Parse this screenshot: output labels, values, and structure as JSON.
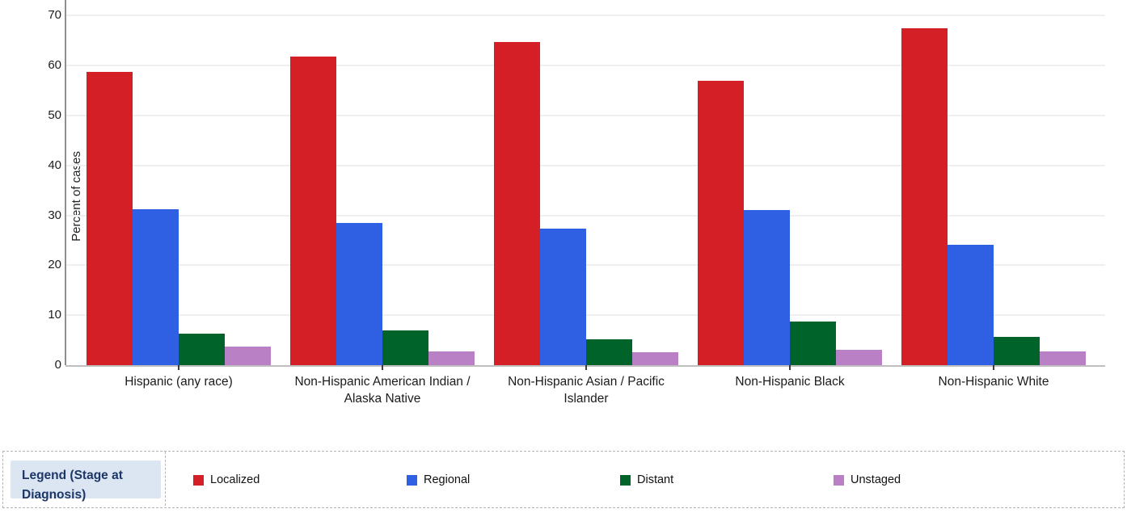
{
  "colors": {
    "localized": "#d41f26",
    "regional": "#2f5fe3",
    "distant": "#006329",
    "unstaged": "#ba80c5",
    "grid": "#efefef",
    "y_axis": "#8f8f8f",
    "x_axis": "#bfbfbf",
    "legend_title_bg": "#dbe6f2",
    "legend_title_text": "#1c3667"
  },
  "chart_data": {
    "type": "bar",
    "title": "",
    "xlabel": "",
    "ylabel": "Percent of cases",
    "grid": true,
    "legend_position": "bottom",
    "y_ticks": [
      0,
      10,
      20,
      30,
      40,
      50,
      60,
      70
    ],
    "ylim_visible": [
      0,
      73.2
    ],
    "categories": [
      "Hispanic (any race)",
      "Non-Hispanic American Indian / Alaska Native",
      "Non-Hispanic Asian / Pacific Islander",
      "Non-Hispanic Black",
      "Non-Hispanic White"
    ],
    "series": [
      {
        "name": "Localized",
        "color": "#d41f26",
        "values": [
          58.7,
          61.8,
          64.8,
          56.9,
          67.4
        ]
      },
      {
        "name": "Regional",
        "color": "#2f5fe3",
        "values": [
          31.3,
          28.5,
          27.4,
          31.1,
          24.1
        ]
      },
      {
        "name": "Distant",
        "color": "#006329",
        "values": [
          6.3,
          6.9,
          5.2,
          8.8,
          5.6
        ]
      },
      {
        "name": "Unstaged",
        "color": "#ba80c5",
        "values": [
          3.7,
          2.7,
          2.6,
          3.1,
          2.7
        ]
      }
    ]
  },
  "legend": {
    "title": "Legend (Stage at Diagnosis)",
    "items": [
      "Localized",
      "Regional",
      "Distant",
      "Unstaged"
    ]
  }
}
